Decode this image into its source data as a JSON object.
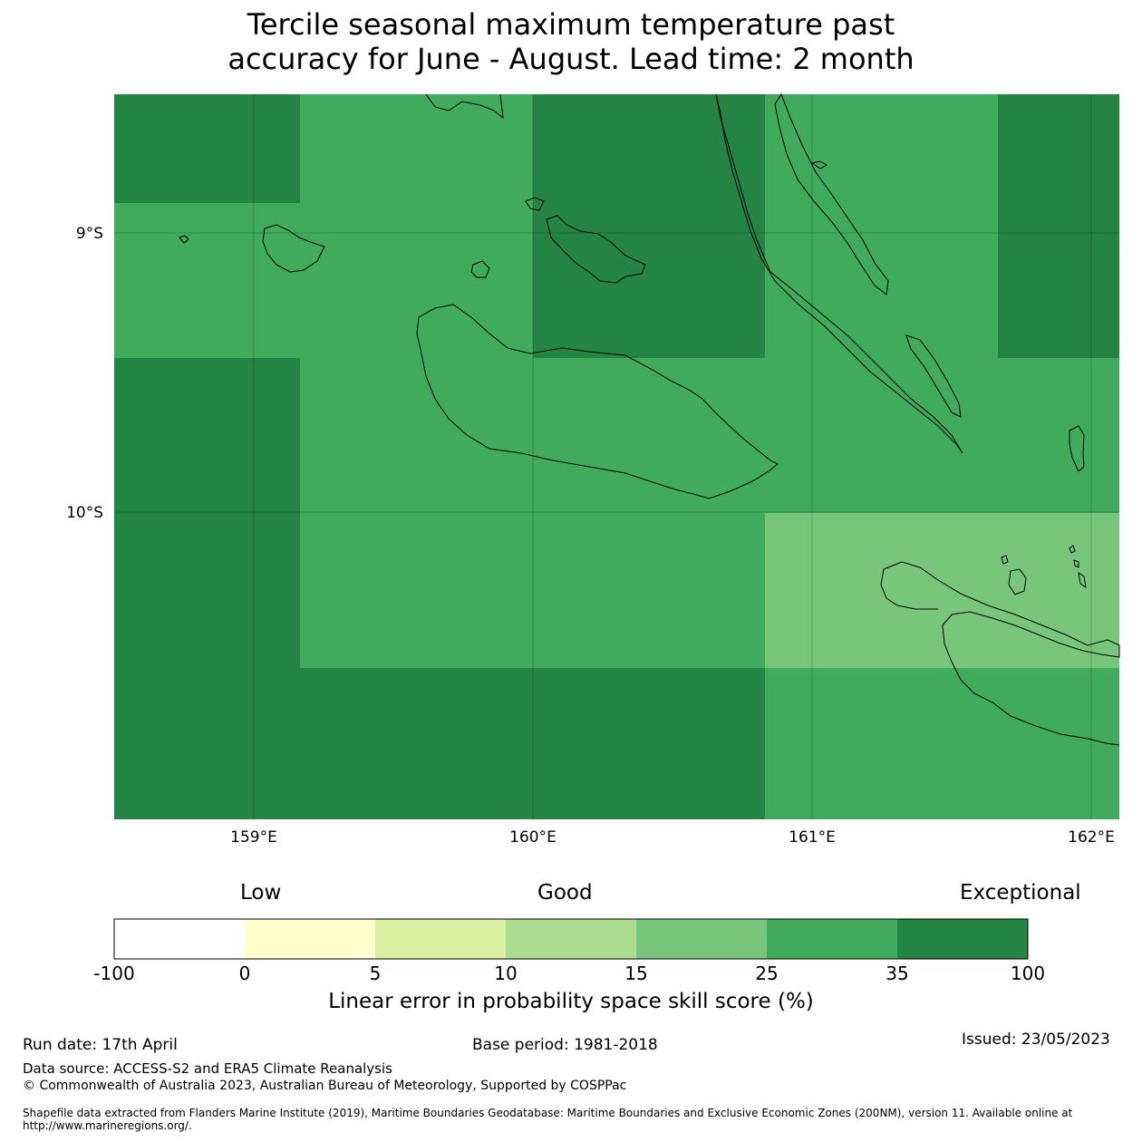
{
  "title_line1": "Tercile seasonal maximum temperature past",
  "title_line2": "accuracy for June - August. Lead time: 2 month",
  "map": {
    "lon_range": [
      158.5,
      162.1
    ],
    "lat_range": [
      -9.0,
      -11.5
    ],
    "lon_ticks": [
      "159°E",
      "160°E",
      "161°E",
      "162°E"
    ],
    "lat_ticks": [
      "9°S",
      "10°S"
    ],
    "grid": true
  },
  "colorbar": {
    "categories": [
      "Low",
      "Good",
      "Exceptional"
    ],
    "ticks": [
      "-100",
      "0",
      "5",
      "10",
      "15",
      "25",
      "35",
      "100"
    ],
    "colors": [
      "#ffffff",
      "#ffffcc",
      "#d9f0a3",
      "#addd8e",
      "#78c679",
      "#41ab5d",
      "#238443"
    ],
    "label": "Linear error in probability space skill score (%)"
  },
  "footer": {
    "run_date": "Run date: 17th April",
    "base_period": "Base period: 1981-2018",
    "issued": "Issued: 23/05/2023",
    "data_source": "Data source: ACCESS-S2 and ERA5 Climate Reanalysis",
    "copyright": "© Commonwealth of Australia 2023, Australian Bureau of Meteorology, Supported by COSPPac",
    "shapefile": "Shapefile data extracted from Flanders Marine Institute (2019), Maritime Boundaries Geodatabase: Maritime Boundaries and Exclusive Economic Zones (200NM), version 11. Available online at http://www.marineregions.org/."
  }
}
